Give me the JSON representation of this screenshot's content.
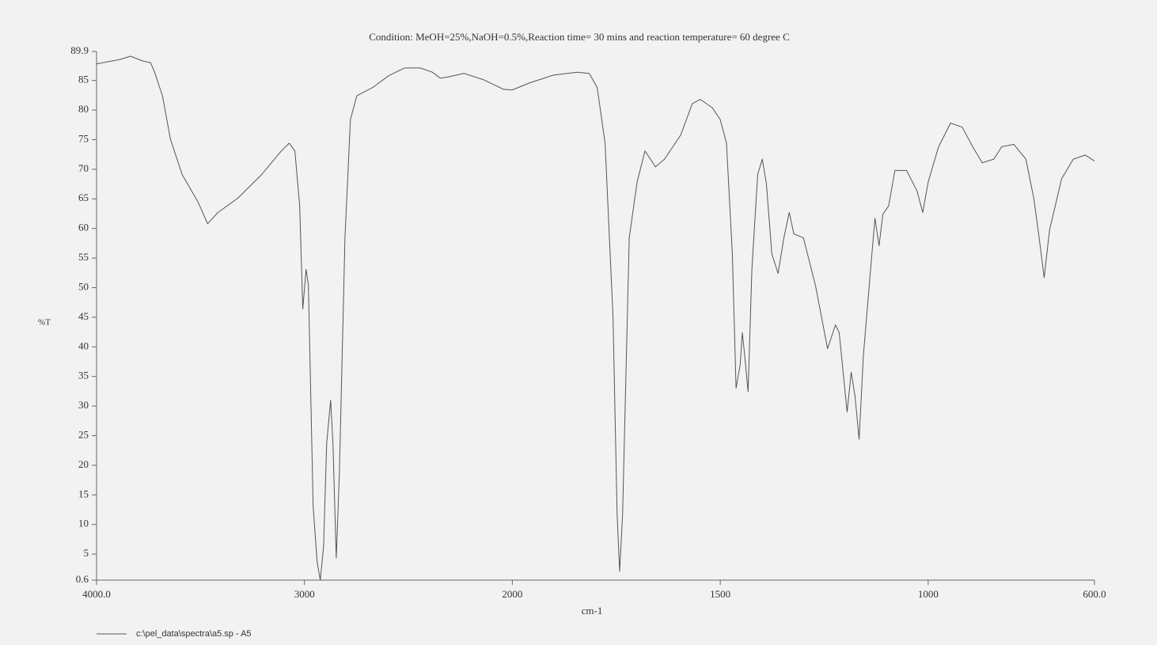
{
  "chart_data": {
    "type": "line",
    "title": "Condition: MeOH=25%,NaOH=0.5%,Reaction time= 30 mins and reaction temperature= 60 degree C",
    "x_label": "cm-1",
    "y_label": "%T",
    "xlim": [
      4000,
      600
    ],
    "xticks": [
      {
        "value": 4000,
        "label": "4000.0"
      },
      3000,
      2000,
      1500,
      1000,
      {
        "value": 600,
        "label": "600.0"
      }
    ],
    "x_scale_break": 2000,
    "ylim": [
      0.6,
      89.9
    ],
    "yticks": [
      0.6,
      5,
      10,
      15,
      20,
      25,
      30,
      35,
      40,
      45,
      50,
      55,
      60,
      65,
      70,
      75,
      80,
      85,
      89.9
    ],
    "x": [
      4000,
      3893,
      3836,
      3779,
      3740,
      3721,
      3683,
      3645,
      3588,
      3511,
      3466,
      3416,
      3321,
      3206,
      3111,
      3073,
      3046,
      3023,
      3008,
      2992,
      2981,
      2958,
      2939,
      2924,
      2908,
      2893,
      2874,
      2863,
      2847,
      2832,
      2805,
      2779,
      2748,
      2672,
      2595,
      2519,
      2443,
      2385,
      2347,
      2309,
      2233,
      2137,
      2042,
      2000,
      1958,
      1901,
      1844,
      1815,
      1796,
      1777,
      1758,
      1748,
      1742,
      1735,
      1719,
      1700,
      1681,
      1668,
      1656,
      1634,
      1595,
      1567,
      1548,
      1519,
      1500,
      1485,
      1471,
      1462,
      1452,
      1447,
      1441,
      1433,
      1424,
      1410,
      1399,
      1389,
      1376,
      1361,
      1347,
      1334,
      1323,
      1300,
      1271,
      1242,
      1223,
      1214,
      1195,
      1185,
      1176,
      1166,
      1156,
      1137,
      1128,
      1118,
      1109,
      1095,
      1080,
      1052,
      1027,
      1013,
      1000,
      975,
      946,
      918,
      893,
      870,
      842,
      823,
      794,
      765,
      746,
      733,
      721,
      708,
      679,
      651,
      622,
      600
    ],
    "series": [
      {
        "name": "c:\\pel_data\\spectra\\a5.sp - A5",
        "color": "#555555",
        "values": [
          87.8,
          88.5,
          89.1,
          88.3,
          88.0,
          86.4,
          82.4,
          75.1,
          69.1,
          64.4,
          60.8,
          62.7,
          65.1,
          69.1,
          73.1,
          74.4,
          73.1,
          63.8,
          46.4,
          53.1,
          50.4,
          13.0,
          3.7,
          0.6,
          6.3,
          23.7,
          31.0,
          23.7,
          4.3,
          18.4,
          58.4,
          78.4,
          82.4,
          83.8,
          85.8,
          87.1,
          87.1,
          86.4,
          85.4,
          85.6,
          86.2,
          85.1,
          83.5,
          83.4,
          84.6,
          85.9,
          86.4,
          86.2,
          83.8,
          74.4,
          45.1,
          11.7,
          2.1,
          11.7,
          58.4,
          67.8,
          73.1,
          71.7,
          70.4,
          71.7,
          75.8,
          81.1,
          81.8,
          80.4,
          78.4,
          74.4,
          55.7,
          33.0,
          37.0,
          42.4,
          38.4,
          32.4,
          53.1,
          69.1,
          71.7,
          67.6,
          55.7,
          52.4,
          58.4,
          62.7,
          59.1,
          58.4,
          50.4,
          39.7,
          43.7,
          42.4,
          29.0,
          35.7,
          31.7,
          24.4,
          38.4,
          54.4,
          61.7,
          57.1,
          62.4,
          63.8,
          69.8,
          69.8,
          66.4,
          62.7,
          67.8,
          73.8,
          77.8,
          77.1,
          73.8,
          71.1,
          71.7,
          73.8,
          74.2,
          71.7,
          65.1,
          58.4,
          51.7,
          59.8,
          68.4,
          71.7,
          72.4,
          71.4
        ]
      }
    ]
  }
}
